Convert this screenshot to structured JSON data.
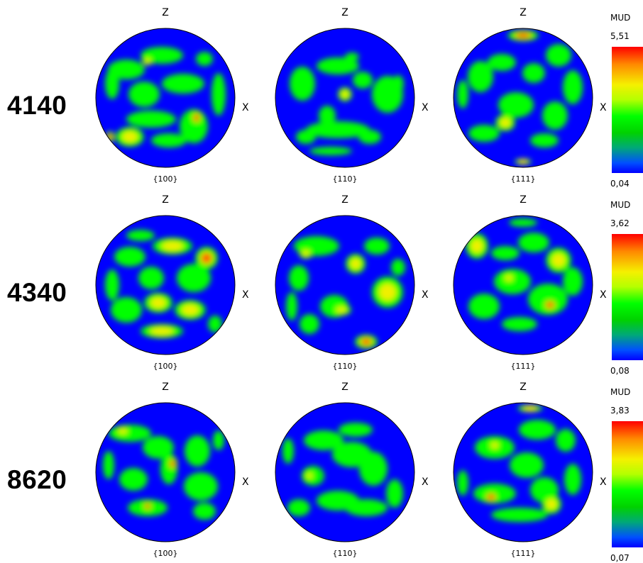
{
  "axis": {
    "top": "Z",
    "side": "X"
  },
  "figure_labels": [
    "{100}",
    "{110}",
    "{111}"
  ],
  "colors": {
    "low": "#0000ff",
    "mid": "#00ff00",
    "high": "#ff0000",
    "border": "#000000"
  },
  "rows": [
    {
      "label": "4140",
      "scale": {
        "unit": "MUD",
        "max": "5,51",
        "min": "0,04"
      }
    },
    {
      "label": "4340",
      "scale": {
        "unit": "MUD",
        "max": "3,62",
        "min": "0,08"
      }
    },
    {
      "label": "8620",
      "scale": {
        "unit": "MUD",
        "max": "3,83",
        "min": "0,07"
      }
    }
  ]
}
